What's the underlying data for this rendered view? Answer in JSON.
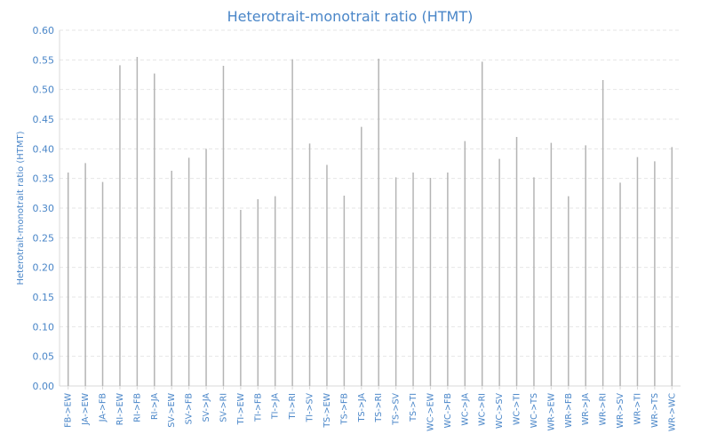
{
  "chart_data": {
    "type": "bar",
    "title": "Heterotrait-monotrait ratio (HTMT)",
    "ylabel": "Heterotrait-monotrait ratio (HTMT)",
    "xlabel": "",
    "ylim": [
      0,
      0.6
    ],
    "yticks": [
      "0.00",
      "0.05",
      "0.10",
      "0.15",
      "0.20",
      "0.25",
      "0.30",
      "0.35",
      "0.40",
      "0.45",
      "0.50",
      "0.55",
      "0.60"
    ],
    "grid": true,
    "categories": [
      "FB->EW",
      "JA->EW",
      "JA->FB",
      "RI->EW",
      "RI->FB",
      "RI->JA",
      "SV->EW",
      "SV->FB",
      "SV->JA",
      "SV->RI",
      "TI->EW",
      "TI->FB",
      "TI->JA",
      "TI->RI",
      "TI->SV",
      "TS->EW",
      "TS->FB",
      "TS->JA",
      "TS->RI",
      "TS->SV",
      "TS->TI",
      "WC->EW",
      "WC->FB",
      "WC->JA",
      "WC->RI",
      "WC->SV",
      "WC->TI",
      "WC->TS",
      "WR->EW",
      "WR->FB",
      "WR->JA",
      "WR->RI",
      "WR->SV",
      "WR->TI",
      "WR->TS",
      "WR->WC"
    ],
    "values": [
      0.36,
      0.376,
      0.344,
      0.541,
      0.555,
      0.527,
      0.363,
      0.385,
      0.4,
      0.54,
      0.297,
      0.315,
      0.32,
      0.551,
      0.409,
      0.373,
      0.321,
      0.437,
      0.552,
      0.352,
      0.36,
      0.351,
      0.36,
      0.413,
      0.547,
      0.383,
      0.42,
      0.352,
      0.41,
      0.32,
      0.406,
      0.516,
      0.343,
      0.386,
      0.379,
      0.403
    ],
    "colors": {
      "title": "#4a86c8",
      "axis_text": "#4a86c8",
      "bar": "#b4b4b4",
      "grid": "#e6e6e6",
      "axis": "#d9d9d9"
    }
  }
}
